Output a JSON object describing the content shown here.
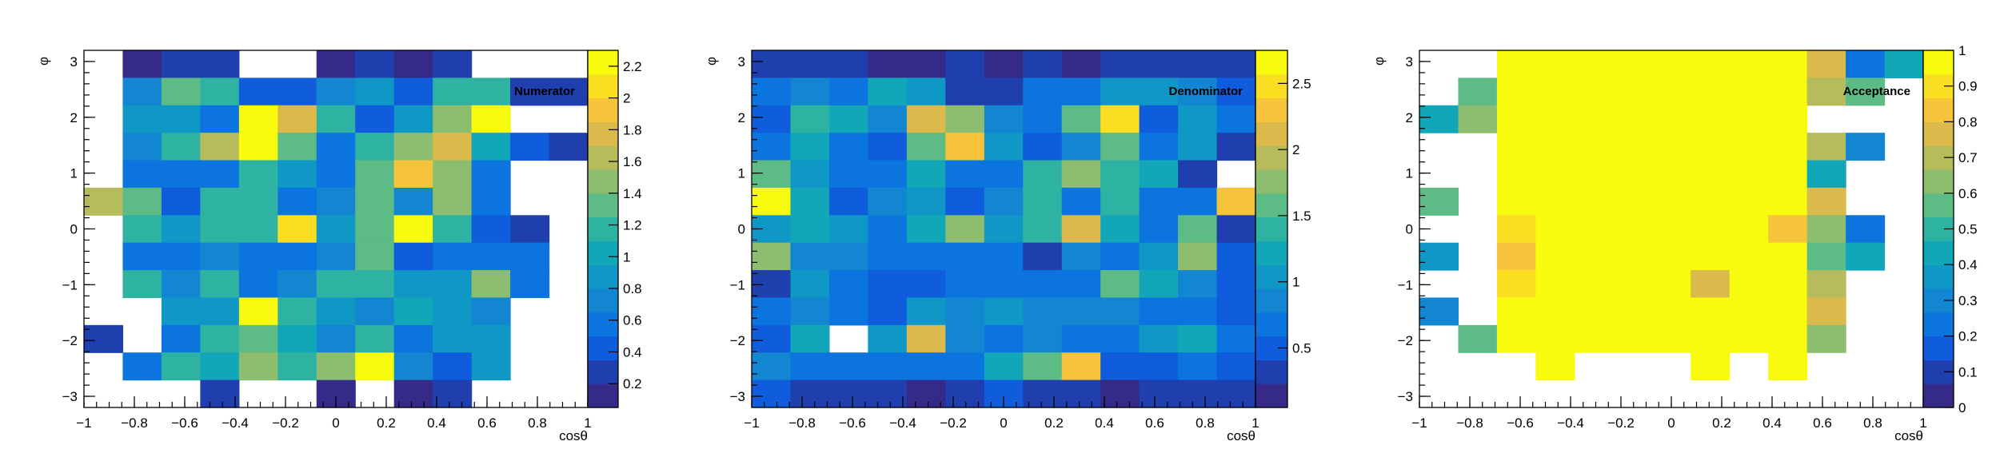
{
  "colormap": [
    "#352a87",
    "#1f3fae",
    "#0f5cdd",
    "#0b74de",
    "#1386d1",
    "#0f98c6",
    "#11a7b8",
    "#2eb3a2",
    "#5dbb86",
    "#8dbd6e",
    "#b6bc5b",
    "#dbb94a",
    "#f6c43a",
    "#f9de22",
    "#f9fb0e"
  ],
  "chart_data": [
    {
      "type": "heatmap",
      "title": "Numerator",
      "xlabel": "cosθ",
      "ylabel": "φ",
      "xlim": [
        -1,
        1
      ],
      "ylim": [
        -3.2,
        3.2
      ],
      "zlim": [
        0.05,
        2.3
      ],
      "x_ticks": [
        "−1",
        "−0.8",
        "−0.6",
        "−0.4",
        "−0.2",
        "0",
        "0.2",
        "0.4",
        "0.6",
        "0.8",
        "1"
      ],
      "y_ticks": [
        "−3",
        "−2",
        "−1",
        "0",
        "1",
        "2",
        "3"
      ],
      "z_ticks": [
        "0.2",
        "0.4",
        "0.6",
        "0.8",
        "1",
        "1.2",
        "1.4",
        "1.6",
        "1.8",
        "2",
        "2.2"
      ],
      "z_tick_values": [
        0.2,
        0.4,
        0.6,
        0.8,
        1.0,
        1.2,
        1.4,
        1.6,
        1.8,
        2.0,
        2.2
      ],
      "grid": false,
      "x_bins": 13,
      "y_bins": 13,
      "values": [
        [
          0,
          0.1,
          0.2,
          0.3,
          0,
          0,
          0.1,
          0.2,
          0.1,
          0.2,
          0,
          0,
          0
        ],
        [
          0,
          0.7,
          1.3,
          1.2,
          0.4,
          0.4,
          0.7,
          0.8,
          0.4,
          1.1,
          1.1,
          0.3,
          0.3
        ],
        [
          0,
          0.9,
          0.8,
          0.5,
          2.2,
          1.8,
          1.1,
          0.4,
          0.8,
          1.4,
          2.3,
          0,
          0
        ],
        [
          0,
          0.7,
          1.1,
          1.6,
          2.3,
          1.3,
          0.5,
          1.1,
          1.4,
          1.7,
          1.0,
          0.4,
          0.3
        ],
        [
          0,
          0.5,
          0.5,
          0.6,
          1.1,
          0.8,
          0.6,
          1.3,
          1.9,
          1.4,
          0.6,
          0,
          0
        ],
        [
          1.6,
          1.3,
          0.4,
          1.1,
          1.2,
          0.5,
          0.7,
          1.3,
          0.7,
          1.4,
          0.5,
          0,
          0
        ],
        [
          0,
          1.1,
          0.8,
          1.2,
          1.1,
          2.0,
          0.9,
          1.3,
          2.3,
          1.1,
          0.4,
          0.3,
          0
        ],
        [
          0,
          0.6,
          0.6,
          0.7,
          0.6,
          0.6,
          0.7,
          1.3,
          0.4,
          0.6,
          0.6,
          0.6,
          0
        ],
        [
          0,
          1.1,
          0.7,
          1.2,
          0.5,
          0.7,
          1.2,
          1.2,
          0.8,
          0.8,
          1.5,
          0.6,
          0
        ],
        [
          0,
          0,
          0.9,
          0.8,
          2.3,
          1.1,
          0.8,
          0.7,
          1.0,
          0.8,
          0.7,
          0,
          0
        ],
        [
          0.3,
          0,
          0.6,
          1.1,
          1.3,
          1.0,
          0.7,
          1.2,
          0.5,
          0.9,
          0.8,
          0,
          0
        ],
        [
          0,
          0.5,
          1.1,
          1.0,
          1.5,
          1.2,
          1.5,
          2.4,
          0.7,
          0.4,
          0.9,
          0,
          0
        ],
        [
          0,
          0,
          0,
          0.2,
          0,
          0,
          0.1,
          0,
          0.1,
          0.2,
          0,
          0,
          0
        ]
      ]
    },
    {
      "type": "heatmap",
      "title": "Denominator",
      "xlabel": "cosθ",
      "ylabel": "φ",
      "xlim": [
        -1,
        1
      ],
      "ylim": [
        -3.2,
        3.2
      ],
      "zlim": [
        0.05,
        2.75
      ],
      "x_ticks": [
        "−1",
        "−0.8",
        "−0.6",
        "−0.4",
        "−0.2",
        "0",
        "0.2",
        "0.4",
        "0.6",
        "0.8",
        "1"
      ],
      "y_ticks": [
        "−3",
        "−2",
        "−1",
        "0",
        "1",
        "2",
        "3"
      ],
      "z_ticks": [
        "0.5",
        "1",
        "1.5",
        "2",
        "2.5"
      ],
      "z_tick_values": [
        0.5,
        1.0,
        1.5,
        2.0,
        2.5
      ],
      "grid": false,
      "x_bins": 13,
      "y_bins": 13,
      "values": [
        [
          0.4,
          0.4,
          0.3,
          0.2,
          0.2,
          0.3,
          0.2,
          0.3,
          0.2,
          0.3,
          0.3,
          0.4,
          0.4
        ],
        [
          0.7,
          0.8,
          0.7,
          1.3,
          1.0,
          0.4,
          0.4,
          0.7,
          0.6,
          1.1,
          1.1,
          0.8,
          0.5
        ],
        [
          0.5,
          1.4,
          1.3,
          0.8,
          2.2,
          1.7,
          0.9,
          0.7,
          1.6,
          2.5,
          0.5,
          1.0,
          0.7
        ],
        [
          0.7,
          1.2,
          0.6,
          0.5,
          1.6,
          2.3,
          1.1,
          0.5,
          0.9,
          1.5,
          0.7,
          1.0,
          0.3
        ],
        [
          1.5,
          1.0,
          0.6,
          0.6,
          1.2,
          0.7,
          0.7,
          1.4,
          1.8,
          1.4,
          1.2,
          0.3,
          0
        ],
        [
          2.7,
          1.2,
          0.5,
          0.8,
          1.1,
          0.5,
          0.8,
          1.4,
          0.7,
          1.4,
          0.7,
          0.7,
          2.3
        ],
        [
          1.0,
          1.2,
          1.0,
          0.6,
          1.2,
          1.8,
          1.1,
          1.4,
          2.2,
          1.2,
          0.6,
          1.5,
          0.4
        ],
        [
          1.7,
          0.9,
          0.8,
          0.7,
          0.7,
          0.6,
          0.6,
          0.4,
          0.8,
          0.6,
          1.1,
          1.7,
          0.5
        ],
        [
          0.3,
          1.0,
          0.6,
          0.5,
          0.5,
          0.6,
          0.6,
          0.6,
          0.6,
          1.5,
          1.2,
          0.9,
          0.5
        ],
        [
          0.7,
          0.8,
          0.7,
          0.5,
          1.0,
          0.8,
          1.1,
          0.9,
          0.8,
          0.9,
          0.7,
          0.6,
          0.5
        ],
        [
          0.5,
          1.3,
          0,
          1.0,
          2.2,
          0.9,
          0.6,
          0.9,
          0.6,
          0.7,
          1.0,
          1.3,
          0.6
        ],
        [
          0.8,
          0.7,
          0.6,
          0.7,
          0.7,
          0.6,
          1.2,
          1.5,
          2.3,
          0.5,
          0.5,
          0.7,
          0.5
        ],
        [
          0.5,
          0.3,
          0.4,
          0.4,
          0.2,
          0.4,
          0.5,
          0.4,
          0.3,
          0.2,
          0.4,
          0.4,
          0.4
        ]
      ]
    },
    {
      "type": "heatmap",
      "title": "Acceptance",
      "xlabel": "cosθ",
      "ylabel": "φ",
      "xlim": [
        -1,
        1
      ],
      "ylim": [
        -3.2,
        3.2
      ],
      "zlim": [
        0,
        1
      ],
      "x_ticks": [
        "−1",
        "−0.8",
        "−0.6",
        "−0.4",
        "−0.2",
        "0",
        "0.2",
        "0.4",
        "0.6",
        "0.8",
        "1"
      ],
      "y_ticks": [
        "−3",
        "−2",
        "−1",
        "0",
        "1",
        "2",
        "3"
      ],
      "z_ticks": [
        "0",
        "0.1",
        "0.2",
        "0.3",
        "0.4",
        "0.5",
        "0.6",
        "0.7",
        "0.8",
        "0.9",
        "1"
      ],
      "z_tick_values": [
        0,
        0.1,
        0.2,
        0.3,
        0.4,
        0.5,
        0.6,
        0.7,
        0.8,
        0.9,
        1.0
      ],
      "grid": false,
      "x_bins": 13,
      "y_bins": 13,
      "values": [
        [
          0,
          0,
          1,
          1,
          1,
          1,
          1,
          1,
          1,
          1,
          0.75,
          0.25,
          0.4
        ],
        [
          0,
          0.55,
          1,
          1,
          1,
          1,
          1,
          1,
          1,
          1,
          0.7,
          0.55,
          0
        ],
        [
          0.4,
          0.65,
          1,
          1,
          1,
          1,
          1,
          1,
          1,
          0.95,
          0,
          0,
          0
        ],
        [
          0,
          0,
          1,
          1,
          1,
          1,
          1,
          1,
          1,
          1,
          0.7,
          0.3,
          0
        ],
        [
          0,
          0,
          1,
          1,
          1,
          1,
          1,
          1,
          1,
          1,
          0.45,
          0,
          0
        ],
        [
          0.55,
          0,
          1,
          1,
          1,
          1,
          1,
          1,
          1,
          1,
          0.75,
          0,
          0
        ],
        [
          0,
          0,
          0.9,
          1,
          1,
          1,
          1,
          1,
          1,
          0.85,
          0.65,
          0.25,
          0
        ],
        [
          0.35,
          0,
          0.8,
          1,
          1,
          1,
          1,
          1,
          1,
          1,
          0.55,
          0.4,
          0
        ],
        [
          0,
          0,
          0.9,
          1,
          1,
          1,
          1,
          0.75,
          1,
          1,
          0.7,
          0,
          0
        ],
        [
          0.3,
          0,
          1,
          1,
          1,
          1,
          1,
          1,
          1,
          1,
          0.75,
          0,
          0
        ],
        [
          0,
          0.55,
          1,
          1,
          1,
          1,
          1,
          1,
          1,
          1,
          0.65,
          0,
          0
        ],
        [
          0,
          0,
          0,
          1,
          0,
          0,
          0,
          1,
          0,
          1,
          0,
          0,
          0
        ],
        [
          0,
          0,
          0,
          0,
          0,
          0,
          0,
          0,
          0,
          0,
          0,
          0,
          0
        ]
      ]
    }
  ]
}
